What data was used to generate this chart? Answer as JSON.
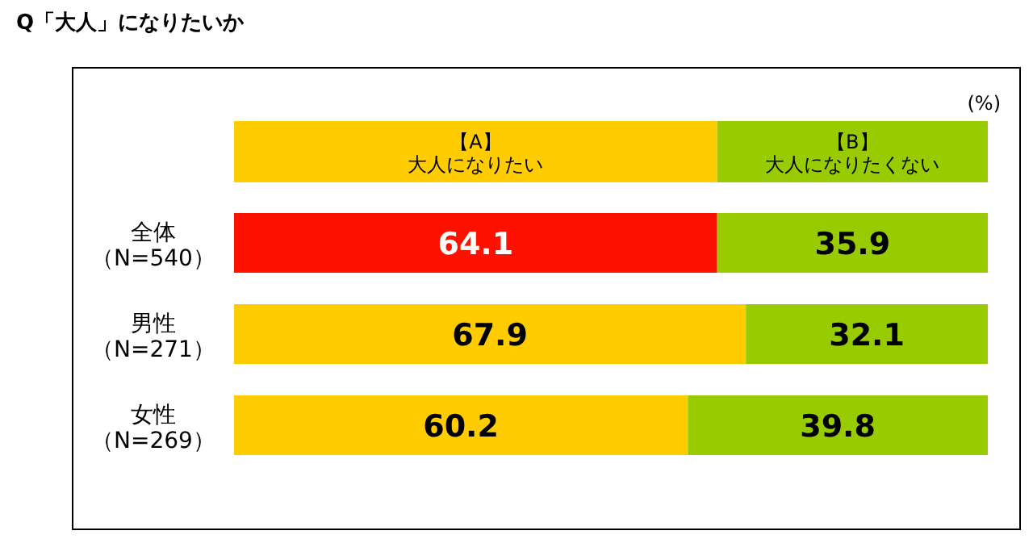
{
  "chart_data": {
    "type": "bar",
    "orientation": "horizontal",
    "stacked": true,
    "title": "Q「大人」になりたいか",
    "categories": [
      "全体（N=540）",
      "男性（N=271）",
      "女性（N=269）"
    ],
    "series": [
      {
        "name": "【A】大人になりたい",
        "color": "#ffcc00",
        "colors": [
          "#ff1100",
          "#ffcc00",
          "#ffcc00"
        ],
        "values": [
          64.1,
          67.9,
          60.2
        ]
      },
      {
        "name": "【B】大人になりたくない",
        "color": "#99cc00",
        "values": [
          35.9,
          32.1,
          39.8
        ]
      }
    ],
    "xlim": [
      0,
      100
    ],
    "data_labels": true,
    "legend": "top",
    "annotations": [
      "(%)"
    ]
  }
}
